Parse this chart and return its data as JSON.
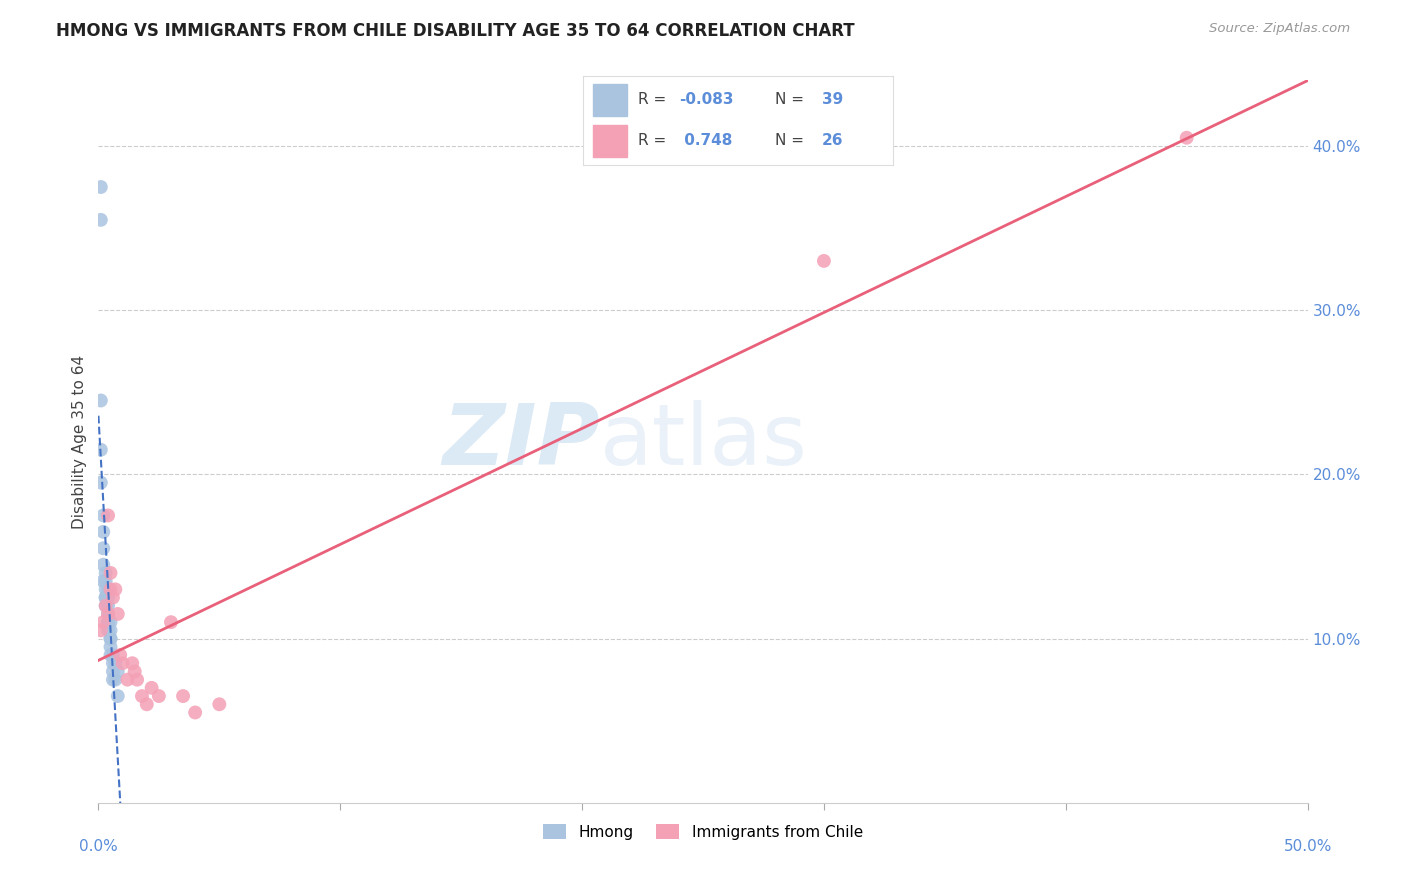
{
  "title": "HMONG VS IMMIGRANTS FROM CHILE DISABILITY AGE 35 TO 64 CORRELATION CHART",
  "source": "Source: ZipAtlas.com",
  "ylabel": "Disability Age 35 to 64",
  "xmin": 0.0,
  "xmax": 0.5,
  "ymin": 0.0,
  "ymax": 0.44,
  "yticks": [
    0.1,
    0.2,
    0.3,
    0.4
  ],
  "ytick_labels": [
    "10.0%",
    "20.0%",
    "30.0%",
    "40.0%"
  ],
  "xticks": [
    0.0,
    0.1,
    0.2,
    0.3,
    0.4,
    0.5
  ],
  "watermark_zip": "ZIP",
  "watermark_atlas": "atlas",
  "hmong_color": "#aac4e0",
  "chile_color": "#f4a0b5",
  "hmong_line_color": "#4472c4",
  "chile_line_color": "#e8607a",
  "hmong_R": "-0.083",
  "hmong_N": "39",
  "chile_R": "0.748",
  "chile_N": "26",
  "legend_R_label": "R = ",
  "legend_N_label": "N = ",
  "hmong_x": [
    0.001,
    0.001,
    0.001,
    0.001,
    0.001,
    0.002,
    0.002,
    0.002,
    0.002,
    0.002,
    0.003,
    0.003,
    0.003,
    0.003,
    0.003,
    0.003,
    0.003,
    0.004,
    0.004,
    0.004,
    0.004,
    0.004,
    0.004,
    0.004,
    0.004,
    0.005,
    0.005,
    0.005,
    0.005,
    0.005,
    0.005,
    0.006,
    0.006,
    0.006,
    0.006,
    0.007,
    0.007,
    0.008,
    0.008
  ],
  "hmong_y": [
    0.375,
    0.355,
    0.245,
    0.215,
    0.195,
    0.175,
    0.165,
    0.155,
    0.145,
    0.135,
    0.14,
    0.135,
    0.13,
    0.125,
    0.125,
    0.125,
    0.12,
    0.13,
    0.125,
    0.12,
    0.115,
    0.115,
    0.11,
    0.11,
    0.105,
    0.11,
    0.105,
    0.1,
    0.1,
    0.095,
    0.09,
    0.09,
    0.085,
    0.08,
    0.075,
    0.085,
    0.075,
    0.08,
    0.065
  ],
  "chile_x": [
    0.001,
    0.002,
    0.003,
    0.004,
    0.004,
    0.005,
    0.005,
    0.006,
    0.007,
    0.008,
    0.009,
    0.01,
    0.012,
    0.014,
    0.015,
    0.016,
    0.018,
    0.02,
    0.022,
    0.025,
    0.03,
    0.035,
    0.04,
    0.05,
    0.3,
    0.45
  ],
  "chile_y": [
    0.105,
    0.11,
    0.12,
    0.115,
    0.175,
    0.14,
    0.13,
    0.125,
    0.13,
    0.115,
    0.09,
    0.085,
    0.075,
    0.085,
    0.08,
    0.075,
    0.065,
    0.06,
    0.07,
    0.065,
    0.11,
    0.065,
    0.055,
    0.06,
    0.33,
    0.405
  ]
}
